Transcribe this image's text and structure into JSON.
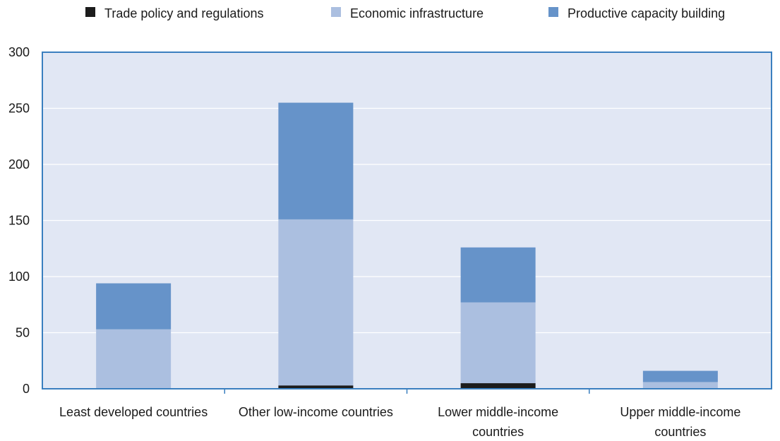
{
  "chart_data": {
    "type": "bar",
    "stacked": true,
    "title": "",
    "xlabel": "",
    "ylabel": "",
    "ylim": [
      0,
      300
    ],
    "yticks": [
      0,
      50,
      100,
      150,
      200,
      250,
      300
    ],
    "grid": true,
    "legend_position": "top",
    "plot_background": "#e1e7f4",
    "frame_color": "#3a7fbf",
    "categories": [
      [
        "Least developed countries"
      ],
      [
        "Other low-income countries"
      ],
      [
        "Lower middle-income",
        "countries"
      ],
      [
        "Upper middle-income",
        "countries"
      ]
    ],
    "series": [
      {
        "name": "Trade policy and regulations",
        "color": "#1c1c1c",
        "values": [
          0,
          3,
          5,
          0
        ]
      },
      {
        "name": "Economic infrastructure",
        "color": "#abbfe0",
        "values": [
          53,
          148,
          72,
          6
        ]
      },
      {
        "name": "Productive capacity building",
        "color": "#6693c9",
        "values": [
          41,
          104,
          49,
          10
        ]
      }
    ]
  }
}
